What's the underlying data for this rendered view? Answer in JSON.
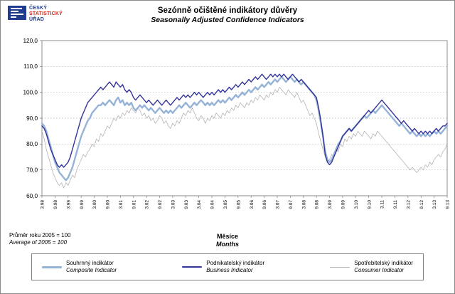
{
  "logo": {
    "line1": "ČESKÝ",
    "line2": "STATISTICKÝ",
    "line3": "ÚŘAD"
  },
  "title": {
    "cs": "Sezónně očištěné indikátory důvěry",
    "en": "Seasonally Adjusted Confidence Indicators"
  },
  "footnote": {
    "cs": "Průměr roku 2005 = 100",
    "en": "Average of 2005 = 100"
  },
  "xaxis_title": {
    "cs": "Měsíce",
    "en": "Months"
  },
  "legend": {
    "items": [
      {
        "label": "Souhrnný indikátor",
        "sublabel": "Composite Indicator"
      },
      {
        "label": "Podnikatelský indikátor",
        "sublabel": "Business Indicator"
      },
      {
        "label": "Spotřebitelský indikátor",
        "sublabel": "Consumer Indicator"
      }
    ]
  },
  "chart_data": {
    "type": "line",
    "title": "Sezónně očištěné indikátory důvěry / Seasonally Adjusted Confidence Indicators",
    "xlabel": "Měsíce / Months",
    "ylabel": "",
    "ylim": [
      60,
      120
    ],
    "y_tick_step": 10,
    "y_ticks": [
      "60,0",
      "70,0",
      "80,0",
      "90,0",
      "100,0",
      "110,0",
      "120,0"
    ],
    "x_range": "3.98 to 9.13 monthly",
    "x_ticks": [
      "3.98",
      "9.98",
      "3.99",
      "9.99",
      "3.00",
      "9.00",
      "3.01",
      "9.01",
      "3.02",
      "9.02",
      "3.03",
      "9.03",
      "3.04",
      "9.04",
      "3.05",
      "9.05",
      "3.06",
      "9.06",
      "3.07",
      "9.07",
      "3.08",
      "9.08",
      "3.09",
      "9.09",
      "3.10",
      "9.10",
      "3.11",
      "9.11",
      "3.12",
      "9.12",
      "3.13",
      "9.13"
    ],
    "tick_interval": 6,
    "grid": "horizontal-dotted",
    "legend_position": "bottom",
    "draw_order": [
      2,
      0,
      1
    ],
    "series": [
      {
        "name": "Souhrnný indikátor / Composite Indicator",
        "color": "#95b3d7",
        "width": 2.4,
        "values": [
          88,
          87,
          85,
          82,
          79,
          76,
          73,
          71,
          69,
          68,
          67,
          66,
          67,
          69,
          71,
          74,
          77,
          80,
          83,
          85,
          87,
          89,
          90,
          92,
          93,
          94,
          95,
          95,
          96,
          95,
          96,
          97,
          96,
          95,
          97,
          98,
          96,
          97,
          95,
          96,
          95,
          96,
          94,
          93,
          94,
          95,
          94,
          95,
          94,
          93,
          94,
          93,
          92,
          93,
          94,
          93,
          92,
          93,
          92,
          93,
          92,
          93,
          94,
          95,
          94,
          95,
          96,
          95,
          94,
          95,
          96,
          95,
          96,
          97,
          96,
          95,
          96,
          95,
          96,
          95,
          96,
          97,
          96,
          97,
          96,
          97,
          98,
          97,
          98,
          99,
          98,
          99,
          100,
          99,
          100,
          101,
          100,
          101,
          102,
          101,
          102,
          103,
          102,
          103,
          104,
          103,
          104,
          105,
          104,
          105,
          106,
          105,
          104,
          105,
          106,
          105,
          104,
          105,
          104,
          103,
          104,
          103,
          102,
          101,
          100,
          99,
          97,
          93,
          88,
          83,
          77,
          74,
          73,
          74,
          76,
          78,
          80,
          81,
          83,
          84,
          85,
          86,
          85,
          86,
          87,
          88,
          89,
          90,
          91,
          90,
          91,
          92,
          93,
          92,
          93,
          94,
          95,
          94,
          93,
          92,
          91,
          90,
          89,
          88,
          87,
          88,
          87,
          86,
          85,
          84,
          85,
          84,
          83,
          84,
          83,
          84,
          83,
          84,
          83,
          84,
          85,
          84,
          85,
          84,
          85,
          86,
          87
        ]
      },
      {
        "name": "Podnikatelský indikátor / Business Indicator",
        "color": "#333399",
        "width": 1.4,
        "values": [
          87,
          86,
          84,
          81,
          78,
          76,
          74,
          72,
          71,
          72,
          71,
          72,
          73,
          75,
          78,
          81,
          84,
          87,
          90,
          92,
          94,
          96,
          97,
          98,
          99,
          100,
          101,
          102,
          101,
          102,
          103,
          104,
          103,
          102,
          104,
          103,
          102,
          103,
          101,
          100,
          101,
          100,
          98,
          97,
          98,
          99,
          98,
          97,
          96,
          97,
          96,
          95,
          96,
          97,
          96,
          95,
          96,
          97,
          96,
          95,
          96,
          97,
          98,
          97,
          98,
          99,
          98,
          99,
          98,
          99,
          100,
          99,
          100,
          99,
          98,
          99,
          100,
          99,
          100,
          99,
          100,
          101,
          100,
          101,
          100,
          101,
          102,
          101,
          102,
          103,
          102,
          103,
          104,
          103,
          104,
          105,
          104,
          105,
          106,
          105,
          106,
          107,
          106,
          105,
          106,
          107,
          106,
          107,
          106,
          107,
          106,
          107,
          106,
          105,
          106,
          107,
          106,
          105,
          104,
          105,
          104,
          103,
          102,
          101,
          100,
          99,
          98,
          94,
          89,
          83,
          76,
          73,
          72,
          73,
          75,
          77,
          79,
          81,
          83,
          84,
          85,
          86,
          85,
          86,
          87,
          88,
          89,
          90,
          91,
          92,
          93,
          92,
          93,
          94,
          95,
          96,
          97,
          96,
          95,
          94,
          93,
          92,
          91,
          90,
          89,
          88,
          89,
          88,
          87,
          86,
          85,
          86,
          85,
          84,
          85,
          84,
          85,
          84,
          85,
          84,
          85,
          86,
          85,
          86,
          87,
          87,
          88
        ]
      },
      {
        "name": "Spotřebitelský indikátor / Consumer Indicator",
        "color": "#b3b3b3",
        "width": 0.8,
        "values": [
          85,
          82,
          78,
          75,
          72,
          69,
          67,
          65,
          64,
          65,
          63,
          65,
          64,
          66,
          68,
          67,
          70,
          72,
          74,
          76,
          75,
          77,
          78,
          80,
          79,
          82,
          81,
          84,
          83,
          85,
          87,
          86,
          88,
          90,
          89,
          91,
          90,
          92,
          91,
          93,
          92,
          94,
          93,
          92,
          94,
          93,
          91,
          92,
          90,
          91,
          89,
          90,
          88,
          89,
          91,
          90,
          88,
          89,
          87,
          86,
          88,
          87,
          89,
          88,
          90,
          92,
          91,
          93,
          92,
          94,
          92,
          90,
          89,
          91,
          90,
          88,
          90,
          89,
          91,
          90,
          92,
          91,
          90,
          92,
          91,
          93,
          92,
          94,
          93,
          95,
          94,
          96,
          95,
          94,
          96,
          95,
          97,
          96,
          98,
          97,
          99,
          98,
          97,
          99,
          98,
          100,
          99,
          101,
          100,
          102,
          101,
          100,
          99,
          101,
          100,
          99,
          98,
          100,
          98,
          96,
          97,
          95,
          93,
          91,
          92,
          90,
          88,
          84,
          81,
          78,
          75,
          73,
          74,
          76,
          75,
          78,
          77,
          80,
          79,
          82,
          81,
          83,
          82,
          84,
          83,
          85,
          84,
          83,
          85,
          84,
          83,
          82,
          84,
          83,
          85,
          84,
          83,
          82,
          81,
          80,
          79,
          78,
          77,
          76,
          75,
          74,
          73,
          72,
          71,
          70,
          71,
          70,
          69,
          70,
          71,
          70,
          72,
          71,
          73,
          72,
          74,
          75,
          76,
          75,
          77,
          78,
          80
        ]
      }
    ]
  },
  "colors": {
    "composite": "#95b3d7",
    "business": "#333399",
    "consumer": "#b3b3b3",
    "grid": "#b0b0b0",
    "plot_border": "#808080",
    "logo_blue": "#1f3c8f",
    "logo_red": "#d5281b"
  }
}
